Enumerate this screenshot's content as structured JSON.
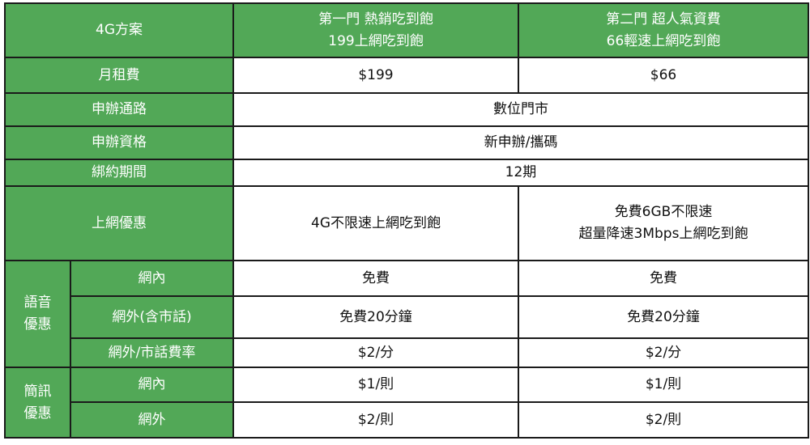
{
  "header": {
    "label": "4G方案",
    "plans": [
      {
        "line1": "第一門 熱銷吃到飽",
        "line2": "199上網吃到飽"
      },
      {
        "line1": "第二門 超人氣資費",
        "line2": "66輕速上網吃到飽"
      }
    ]
  },
  "rows": {
    "monthly_fee": {
      "label": "月租費",
      "values": [
        "$199",
        "$66"
      ]
    },
    "channel": {
      "label": "申辦通路",
      "value": "數位門市"
    },
    "eligibility": {
      "label": "申辦資格",
      "value": "新申辦/攜碼"
    },
    "contract": {
      "label": "綁約期間",
      "value": "12期"
    },
    "data": {
      "label": "上網優惠",
      "plan1": "4G不限速上網吃到飽",
      "plan2_line1": "免費6GB不限速",
      "plan2_line2": "超量降速3Mbps上網吃到飽"
    }
  },
  "voice": {
    "group_line1": "語音",
    "group_line2": "優惠",
    "items": [
      {
        "label": "網內",
        "values": [
          "免費",
          "免費"
        ]
      },
      {
        "label": "網外(含市話)",
        "values": [
          "免費20分鐘",
          "免費20分鐘"
        ]
      },
      {
        "label": "網外/市話費率",
        "values": [
          "$2/分",
          "$2/分"
        ]
      }
    ]
  },
  "sms": {
    "group_line1": "簡訊",
    "group_line2": "優惠",
    "items": [
      {
        "label": "網內",
        "values": [
          "$1/則",
          "$1/則"
        ]
      },
      {
        "label": "網外",
        "values": [
          "$2/則",
          "$2/則"
        ]
      }
    ]
  },
  "colors": {
    "header_green": "#52a857",
    "border": "#1a1a1a"
  }
}
